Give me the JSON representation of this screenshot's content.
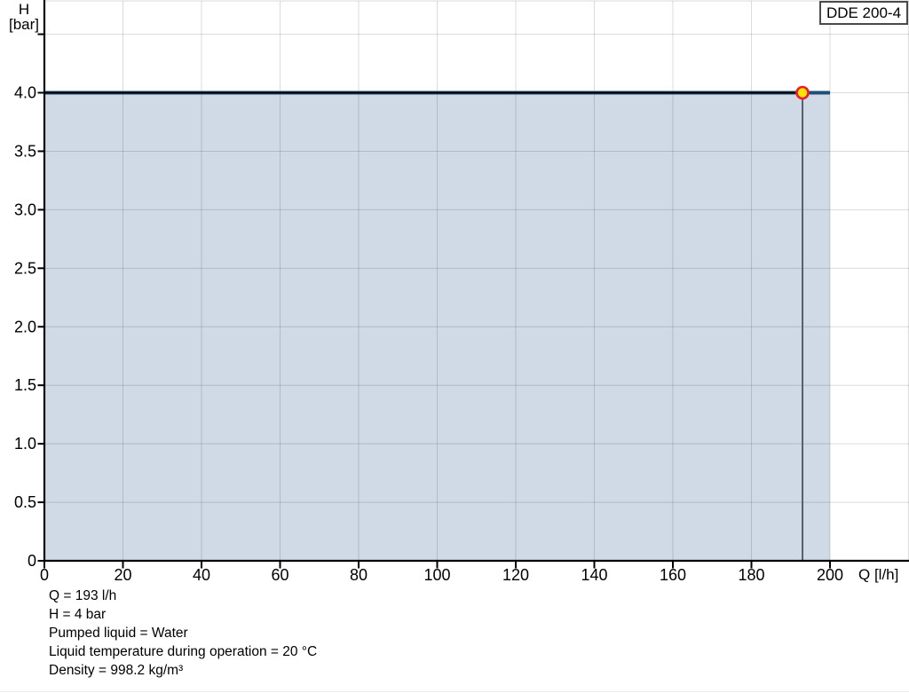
{
  "legend": {
    "label": "DDE 200-4"
  },
  "axes": {
    "y_title_line1": "H",
    "y_title_line2": "[bar]",
    "x_title": "Q [l/h]"
  },
  "chart_data": {
    "type": "area",
    "title": "",
    "xlabel": "Q [l/h]",
    "ylabel": "H [bar]",
    "xlim": [
      0,
      220
    ],
    "ylim": [
      0,
      4.8
    ],
    "grid": true,
    "x_ticks": [
      0,
      20,
      40,
      60,
      80,
      100,
      120,
      140,
      160,
      180,
      200
    ],
    "x_tick_labels": [
      "0",
      "20",
      "40",
      "60",
      "80",
      "100",
      "120",
      "140",
      "160",
      "180",
      "200"
    ],
    "y_ticks": [
      0,
      0.5,
      1,
      1.5,
      2,
      2.5,
      3,
      3.5,
      4,
      4.5
    ],
    "y_tick_labels": [
      "0",
      "0.5",
      "1.0",
      "1.5",
      "2.0",
      "2.5",
      "3.0",
      "3.5",
      "4.0",
      ""
    ],
    "series": [
      {
        "name": "DDE 200-4",
        "x": [
          0,
          200
        ],
        "y": [
          4,
          4
        ],
        "line_color": "#1F4E79",
        "area_color": "#CFDAE6"
      }
    ],
    "operating_point": {
      "Q": 193,
      "H": 4,
      "marker_fill": "#FFE600",
      "marker_ring": "#EF1A2D",
      "crosshair_h_color": "#000000",
      "crosshair_v_color": "#55606C"
    }
  },
  "colors": {
    "axis": "#000000",
    "gridline": "#D9D9D9",
    "curve": "#1F4E79",
    "area": "#CFDAE6"
  },
  "footer": {
    "lines": [
      "Q = 193 l/h",
      "H = 4 bar",
      "Pumped liquid = Water",
      "Liquid temperature during operation = 20 °C",
      "Density = 998.2 kg/m³"
    ]
  }
}
